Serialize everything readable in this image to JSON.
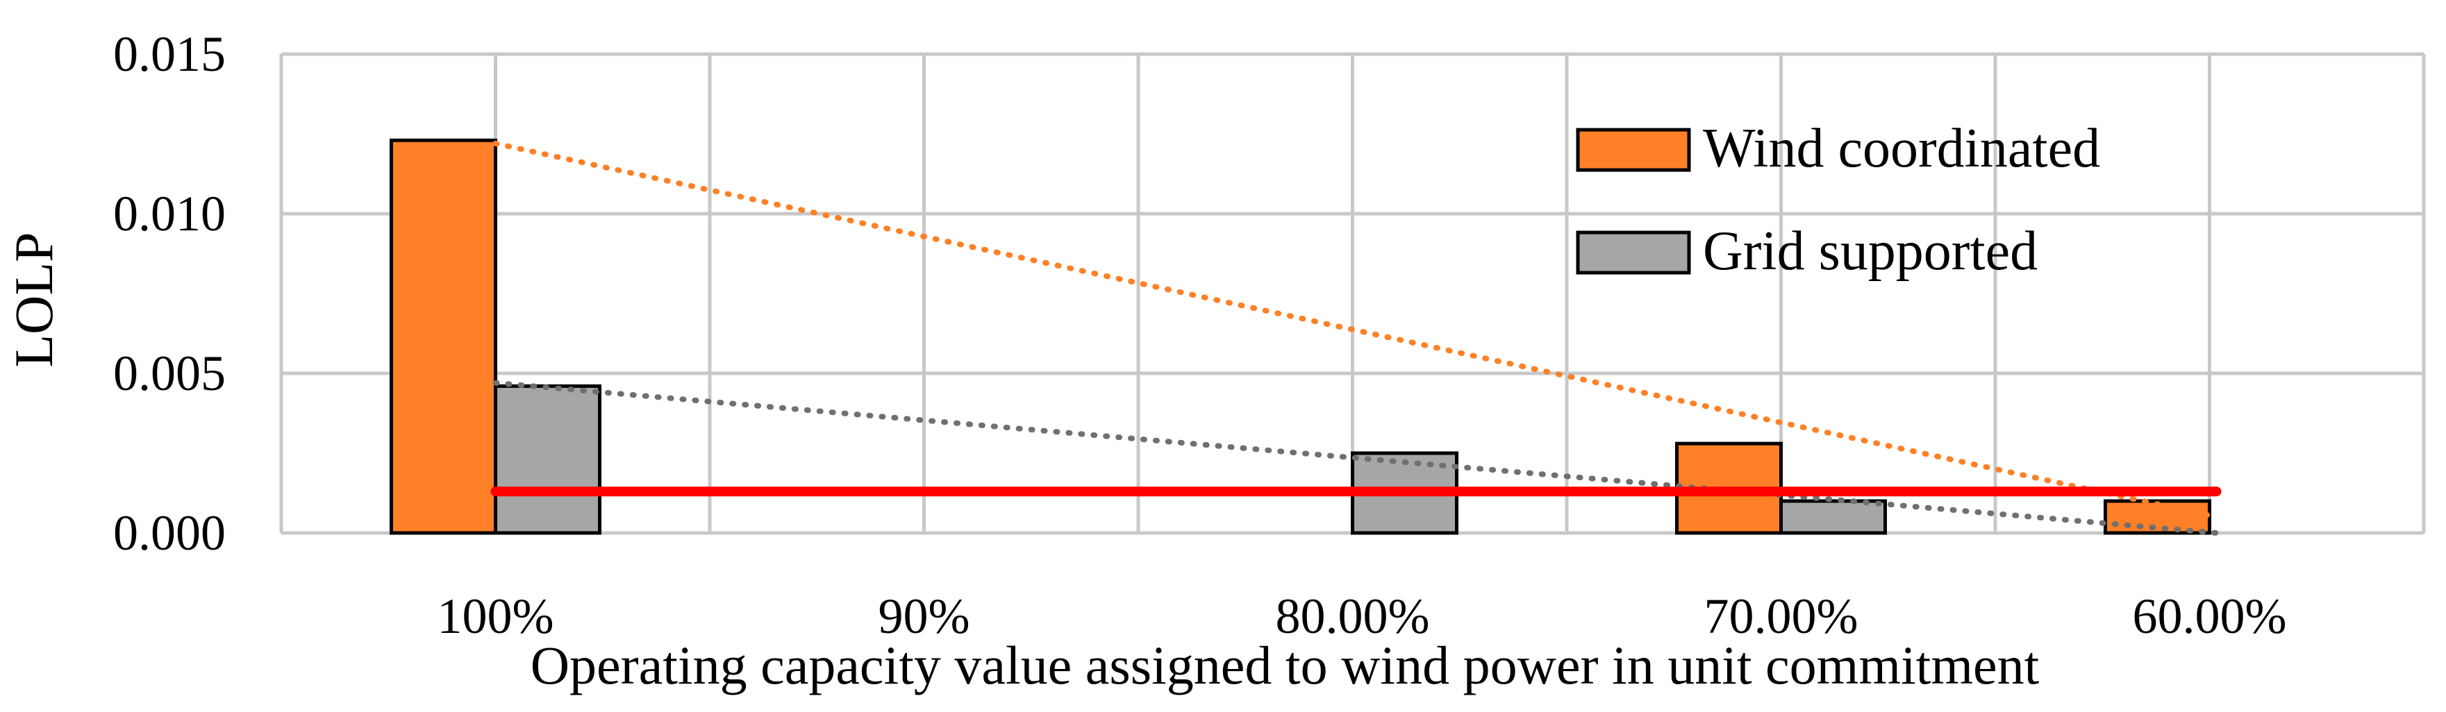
{
  "chart_data": {
    "type": "bar",
    "title": "",
    "xlabel": "Operating capacity value assigned to wind power in unit commitment",
    "ylabel": "LOLP",
    "categories": [
      "100%",
      "90%",
      "80.00%",
      "70.00%",
      "60.00%"
    ],
    "ylim": [
      0,
      0.015
    ],
    "yticks": [
      "0.000",
      "0.005",
      "0.010",
      "0.015"
    ],
    "ytick_values": [
      0,
      0.005,
      0.01,
      0.015
    ],
    "grid": true,
    "legend_position": "top-right",
    "series": [
      {
        "name": "Wind coordinated",
        "color": "#FF8026",
        "values": [
          0.0123,
          0,
          0,
          0.0028,
          0.001
        ],
        "trendline": {
          "style": "dotted",
          "from": 0.0122,
          "to": 0.0005
        }
      },
      {
        "name": "Grid supported",
        "color": "#A6A6A6",
        "values": [
          0.0046,
          0,
          0.0025,
          0.001,
          0
        ],
        "trendline": {
          "style": "dotted",
          "color": "#707070",
          "from": 0.0047,
          "to": 0.0
        }
      }
    ],
    "threshold_line": {
      "value": 0.0013,
      "color": "#FF0000"
    }
  }
}
